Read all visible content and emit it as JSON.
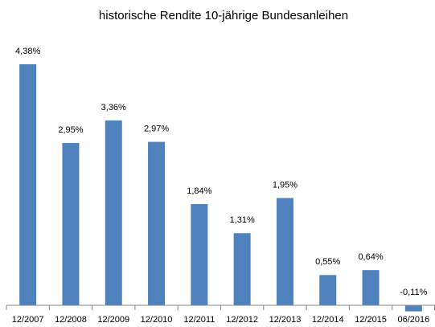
{
  "chart_data": {
    "type": "bar",
    "title": "historische Rendite 10-jährige Bundesanleihen",
    "categories": [
      "12/2007",
      "12/2008",
      "12/2009",
      "12/2010",
      "12/2011",
      "12/2012",
      "12/2013",
      "12/2014",
      "12/2015",
      "06/2016"
    ],
    "values": [
      4.38,
      2.95,
      3.36,
      2.97,
      1.84,
      1.31,
      1.95,
      0.55,
      0.64,
      -0.11
    ],
    "value_labels": [
      "4,38%",
      "2,95%",
      "3,36%",
      "2,97%",
      "1,84%",
      "1,31%",
      "1,95%",
      "0,55%",
      "0,64%",
      "-0,11%"
    ],
    "color": "#4f81bd"
  }
}
